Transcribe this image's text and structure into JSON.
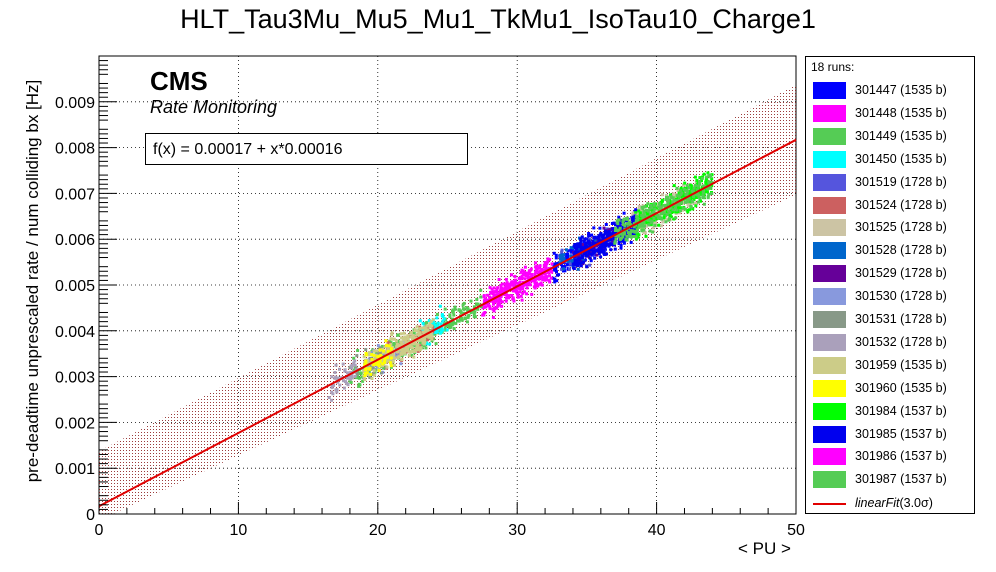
{
  "title": "HLT_Tau3Mu_Mu5_Mu1_TkMu1_IsoTau10_Charge1",
  "cms_label": "CMS",
  "cms_sublabel": "Rate Monitoring",
  "fit_text": "f(x) = 0.00017 + x*0.00016",
  "chart_data": {
    "type": "scatter",
    "title": "HLT_Tau3Mu_Mu5_Mu1_TkMu1_IsoTau10_Charge1",
    "xlabel": "< PU >",
    "ylabel": "pre-deadtime unprescaled rate / num colliding bx [Hz]",
    "xlim": [
      0,
      50
    ],
    "ylim": [
      0,
      0.01
    ],
    "x_ticks": [
      0,
      10,
      20,
      30,
      40,
      50
    ],
    "x_tick_labels": [
      "0",
      "10",
      "20",
      "30",
      "40",
      "50"
    ],
    "y_ticks": [
      0,
      0.001,
      0.002,
      0.003,
      0.004,
      0.005,
      0.006,
      0.007,
      0.008,
      0.009
    ],
    "y_tick_labels": [
      "0",
      "0.001",
      "0.002",
      "0.003",
      "0.004",
      "0.005",
      "0.006",
      "0.007",
      "0.008",
      "0.009"
    ],
    "grid": true,
    "legend_position": "right",
    "legend_header": "18 runs:",
    "series": [
      {
        "name": "301447 (1535 b)",
        "color": "#0000ff",
        "x_range": [
          32.5,
          38.5
        ],
        "center": [
          35.5,
          0.0058
        ]
      },
      {
        "name": "301448 (1535 b)",
        "color": "#ff00ff",
        "x_range": [
          27.5,
          32.5
        ],
        "center": [
          30.0,
          0.005
        ]
      },
      {
        "name": "301449 (1535 b)",
        "color": "#55cc55",
        "x_range": [
          18.0,
          27.5
        ],
        "center": [
          22.5,
          0.0039
        ]
      },
      {
        "name": "301450 (1535 b)",
        "color": "#00ffff",
        "x_range": [
          23.0,
          25.0
        ],
        "center": [
          24.0,
          0.0034
        ]
      },
      {
        "name": "301519 (1728 b)",
        "color": "#5555dd",
        "x_range": [
          33.0,
          37.0
        ],
        "center": [
          35.0,
          0.0058
        ]
      },
      {
        "name": "301524 (1728 b)",
        "color": "#cc6060",
        "x_range": [
          20.0,
          24.0
        ],
        "center": [
          22.0,
          0.0036
        ]
      },
      {
        "name": "301525 (1728 b)",
        "color": "#ccc4a4",
        "x_range": [
          38.0,
          43.0
        ],
        "center": [
          40.0,
          0.0064
        ]
      },
      {
        "name": "301528 (1728 b)",
        "color": "#0066cc",
        "x_range": [
          33.0,
          36.0
        ],
        "center": [
          34.5,
          0.0057
        ]
      },
      {
        "name": "301529 (1728 b)",
        "color": "#660099",
        "x_range": [
          34.0,
          37.0
        ],
        "center": [
          35.5,
          0.0059
        ]
      },
      {
        "name": "301530 (1728 b)",
        "color": "#8899dd",
        "x_range": [
          19.0,
          22.0
        ],
        "center": [
          20.5,
          0.0035
        ]
      },
      {
        "name": "301531 (1728 b)",
        "color": "#889988",
        "x_range": [
          18.0,
          21.0
        ],
        "center": [
          19.5,
          0.0033
        ]
      },
      {
        "name": "301532 (1728 b)",
        "color": "#aaa0bb",
        "x_range": [
          16.5,
          18.5
        ],
        "center": [
          17.5,
          0.0029
        ]
      },
      {
        "name": "301959 (1535 b)",
        "color": "#cccc88",
        "x_range": [
          19.0,
          24.0
        ],
        "center": [
          21.5,
          0.0036
        ]
      },
      {
        "name": "301960 (1535 b)",
        "color": "#ffff00",
        "x_range": [
          19.0,
          21.0
        ],
        "center": [
          20.0,
          0.0034
        ]
      },
      {
        "name": "301984 (1537 b)",
        "color": "#00ff00",
        "x_range": [
          38.5,
          44.0
        ],
        "center": [
          41.0,
          0.0067
        ]
      },
      {
        "name": "301985 (1537 b)",
        "color": "#0000ee",
        "x_range": [
          34.0,
          38.5
        ],
        "center": [
          36.5,
          0.006
        ]
      },
      {
        "name": "301986 (1537 b)",
        "color": "#ff00ff",
        "x_range": [
          28.0,
          32.0
        ],
        "center": [
          30.0,
          0.005
        ]
      },
      {
        "name": "301987 (1537 b)",
        "color": "#55cc55",
        "x_range": [
          37.0,
          44.0
        ],
        "center": [
          40.5,
          0.0066
        ]
      }
    ],
    "fit": {
      "name": "linearFit",
      "name_suffix": "(3.0σ)",
      "intercept": 0.00017,
      "slope": 0.00016,
      "band_sigma": 3.0,
      "band_half_width": 0.0012,
      "color": "#e00000"
    }
  }
}
